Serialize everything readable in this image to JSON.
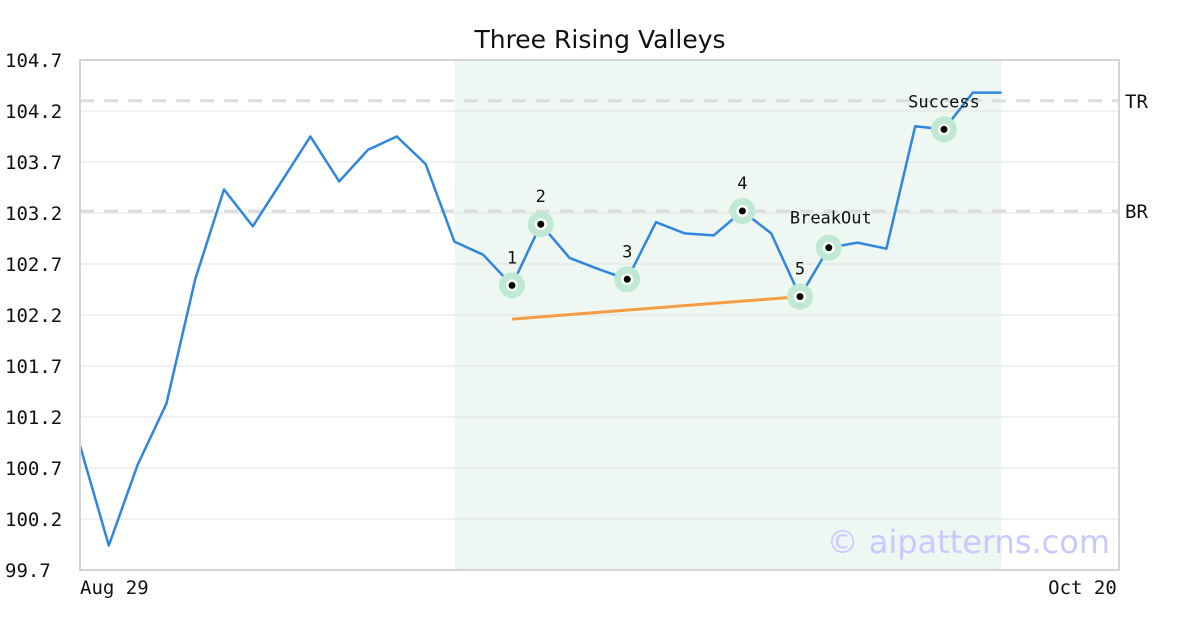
{
  "chart_data": {
    "type": "line",
    "title": "Three Rising Valleys",
    "xlabel": "",
    "ylabel": "",
    "ylim": [
      99.7,
      104.7
    ],
    "y_ticks": [
      "104.7",
      "104.2",
      "103.7",
      "103.2",
      "102.7",
      "102.2",
      "101.7",
      "101.2",
      "100.7",
      "100.2",
      "99.7"
    ],
    "x_tick_labels": [
      {
        "label": "Aug 29",
        "index": 0
      },
      {
        "label": "Oct 20",
        "index": 36
      }
    ],
    "grid": true,
    "series": [
      {
        "color": "#2e86de",
        "values": [
          100.92,
          99.94,
          100.73,
          101.33,
          102.55,
          103.43,
          103.07,
          103.51,
          103.95,
          103.51,
          103.82,
          103.95,
          103.68,
          102.92,
          102.79,
          102.49,
          103.09,
          102.76,
          102.65,
          102.55,
          103.11,
          103.0,
          102.98,
          103.22,
          103.0,
          102.38,
          102.86,
          102.91,
          102.85,
          104.05,
          104.02,
          104.38,
          104.38
        ]
      }
    ],
    "pattern_region": {
      "start_index": 13,
      "end_index": 32,
      "color": "#eef7f2"
    },
    "levels": [
      {
        "label": "TR",
        "value": 104.3
      },
      {
        "label": "BR",
        "value": 103.22
      }
    ],
    "trendline": {
      "from": [
        15,
        102.16
      ],
      "to": [
        25,
        102.38
      ],
      "color": "#f59c42"
    },
    "points": [
      {
        "label": "1",
        "index": 15,
        "value": 102.49
      },
      {
        "label": "2",
        "index": 16,
        "value": 103.09
      },
      {
        "label": "3",
        "index": 19,
        "value": 102.55
      },
      {
        "label": "4",
        "index": 23,
        "value": 103.22
      },
      {
        "label": "5",
        "index": 25,
        "value": 102.38
      },
      {
        "label": "BreakOut",
        "index": 26,
        "value": 102.86
      },
      {
        "label": "Success",
        "index": 30,
        "value": 104.02
      }
    ],
    "watermark": "© aipatterns.com",
    "accent_color": "#2e86de",
    "marker_halo_color": "#bfe9d4",
    "watermark_color": "#c9c9ff"
  }
}
